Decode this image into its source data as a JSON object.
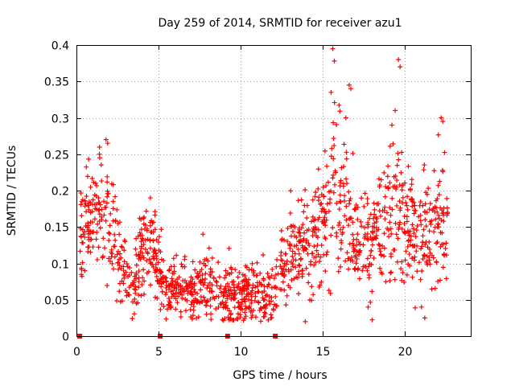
{
  "chart_data": {
    "type": "scatter",
    "title": "Day 259 of 2014, SRMTID for receiver azu1",
    "xlabel": "GPS time / hours",
    "ylabel": "SRMTID / TECUs",
    "xlim": [
      0,
      24
    ],
    "ylim": [
      0,
      0.4
    ],
    "xticks": [
      0,
      5,
      10,
      15,
      20
    ],
    "yticks": [
      0,
      0.05,
      0.1,
      0.15,
      0.2,
      0.25,
      0.3,
      0.35,
      0.4
    ],
    "xtick_labels": [
      "0",
      "5",
      "10",
      "15",
      "20"
    ],
    "ytick_labels": [
      "0",
      "0.05",
      "0.1",
      "0.15",
      "0.2",
      "0.25",
      "0.3",
      "0.35",
      "0.4"
    ],
    "grid": true,
    "marker": "+",
    "color": "#ff0000",
    "zero_points_x": [
      0.2,
      5.1,
      9.2,
      12.1
    ],
    "profile": [
      [
        0.2,
        0.14,
        0.03
      ],
      [
        0.6,
        0.15,
        0.035
      ],
      [
        1.0,
        0.17,
        0.035
      ],
      [
        1.4,
        0.18,
        0.035
      ],
      [
        1.8,
        0.16,
        0.04
      ],
      [
        2.2,
        0.15,
        0.035
      ],
      [
        2.6,
        0.11,
        0.03
      ],
      [
        3.0,
        0.08,
        0.025
      ],
      [
        3.4,
        0.06,
        0.02
      ],
      [
        3.8,
        0.1,
        0.03
      ],
      [
        4.2,
        0.13,
        0.03
      ],
      [
        4.6,
        0.13,
        0.03
      ],
      [
        5.0,
        0.09,
        0.025
      ],
      [
        5.4,
        0.07,
        0.02
      ],
      [
        5.8,
        0.07,
        0.02
      ],
      [
        6.2,
        0.065,
        0.02
      ],
      [
        6.6,
        0.065,
        0.02
      ],
      [
        7.0,
        0.06,
        0.02
      ],
      [
        7.4,
        0.06,
        0.02
      ],
      [
        7.8,
        0.07,
        0.02
      ],
      [
        8.2,
        0.065,
        0.02
      ],
      [
        8.6,
        0.07,
        0.02
      ],
      [
        9.0,
        0.06,
        0.02
      ],
      [
        9.4,
        0.06,
        0.02
      ],
      [
        9.8,
        0.05,
        0.02
      ],
      [
        10.2,
        0.05,
        0.02
      ],
      [
        10.6,
        0.055,
        0.02
      ],
      [
        11.0,
        0.055,
        0.02
      ],
      [
        11.4,
        0.055,
        0.02
      ],
      [
        11.8,
        0.06,
        0.02
      ],
      [
        12.2,
        0.06,
        0.02
      ],
      [
        12.6,
        0.09,
        0.03
      ],
      [
        13.0,
        0.12,
        0.03
      ],
      [
        13.4,
        0.12,
        0.03
      ],
      [
        13.8,
        0.13,
        0.035
      ],
      [
        14.2,
        0.12,
        0.035
      ],
      [
        14.6,
        0.15,
        0.04
      ],
      [
        15.0,
        0.16,
        0.04
      ],
      [
        15.4,
        0.18,
        0.05
      ],
      [
        15.8,
        0.2,
        0.06
      ],
      [
        16.2,
        0.2,
        0.05
      ],
      [
        16.6,
        0.16,
        0.04
      ],
      [
        17.0,
        0.12,
        0.035
      ],
      [
        17.4,
        0.13,
        0.04
      ],
      [
        17.8,
        0.12,
        0.04
      ],
      [
        18.2,
        0.14,
        0.04
      ],
      [
        18.6,
        0.15,
        0.045
      ],
      [
        19.0,
        0.17,
        0.05
      ],
      [
        19.4,
        0.18,
        0.05
      ],
      [
        19.8,
        0.17,
        0.05
      ],
      [
        20.2,
        0.17,
        0.045
      ],
      [
        20.6,
        0.14,
        0.045
      ],
      [
        21.0,
        0.13,
        0.04
      ],
      [
        21.4,
        0.13,
        0.04
      ],
      [
        21.8,
        0.14,
        0.04
      ],
      [
        22.2,
        0.16,
        0.045
      ],
      [
        22.6,
        0.15,
        0.04
      ]
    ],
    "spikes": [
      [
        15.6,
        0.395
      ],
      [
        15.7,
        0.378
      ],
      [
        15.5,
        0.335
      ],
      [
        16.6,
        0.345
      ],
      [
        16.7,
        0.34
      ],
      [
        19.6,
        0.38
      ],
      [
        19.7,
        0.37
      ],
      [
        19.4,
        0.31
      ],
      [
        19.2,
        0.29
      ],
      [
        22.3,
        0.295
      ],
      [
        22.2,
        0.3
      ],
      [
        16.4,
        0.3
      ],
      [
        1.8,
        0.27
      ],
      [
        1.9,
        0.265
      ],
      [
        1.4,
        0.25
      ],
      [
        4.5,
        0.19
      ],
      [
        7.7,
        0.14
      ],
      [
        12.2,
        0.105
      ],
      [
        21.2,
        0.025
      ],
      [
        21.0,
        0.04
      ]
    ],
    "n_random_points": 1400
  }
}
